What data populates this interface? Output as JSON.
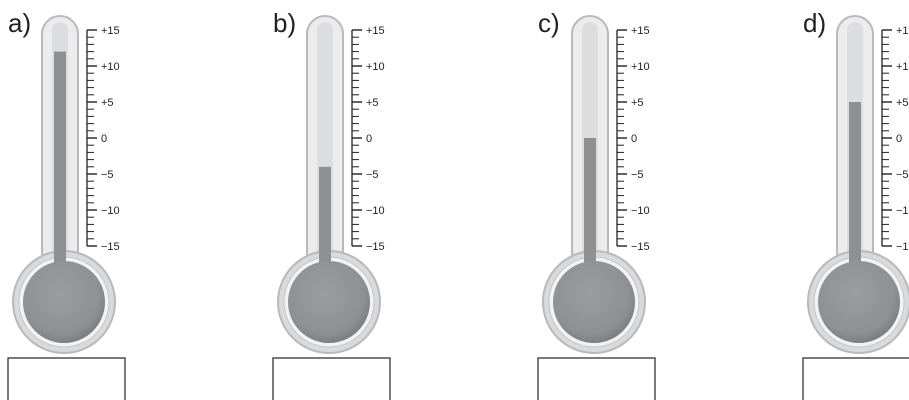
{
  "scale": {
    "min": -15,
    "max": 15,
    "tick_labels": [
      "+15",
      "+10",
      "+5",
      "0",
      "−5",
      "−10",
      "−15"
    ],
    "tick_values": [
      15,
      10,
      5,
      0,
      -5,
      -10,
      -15
    ]
  },
  "colors": {
    "tube": "#dcdddf",
    "tube_outline": "#b7b9bc",
    "mercury": "#8f9091",
    "bulb": "#8f9091",
    "bulb_ring": "#d9dadc",
    "text": "#222222",
    "box_border": "#222222"
  },
  "thermometers": [
    {
      "label": "a)",
      "reading": 12
    },
    {
      "label": "b)",
      "reading": -4
    },
    {
      "label": "c)",
      "reading": 0
    },
    {
      "label": "d)",
      "reading": 5
    }
  ],
  "answer_boxes": [
    {
      "value": ""
    },
    {
      "value": ""
    },
    {
      "value": ""
    },
    {
      "value": ""
    }
  ]
}
